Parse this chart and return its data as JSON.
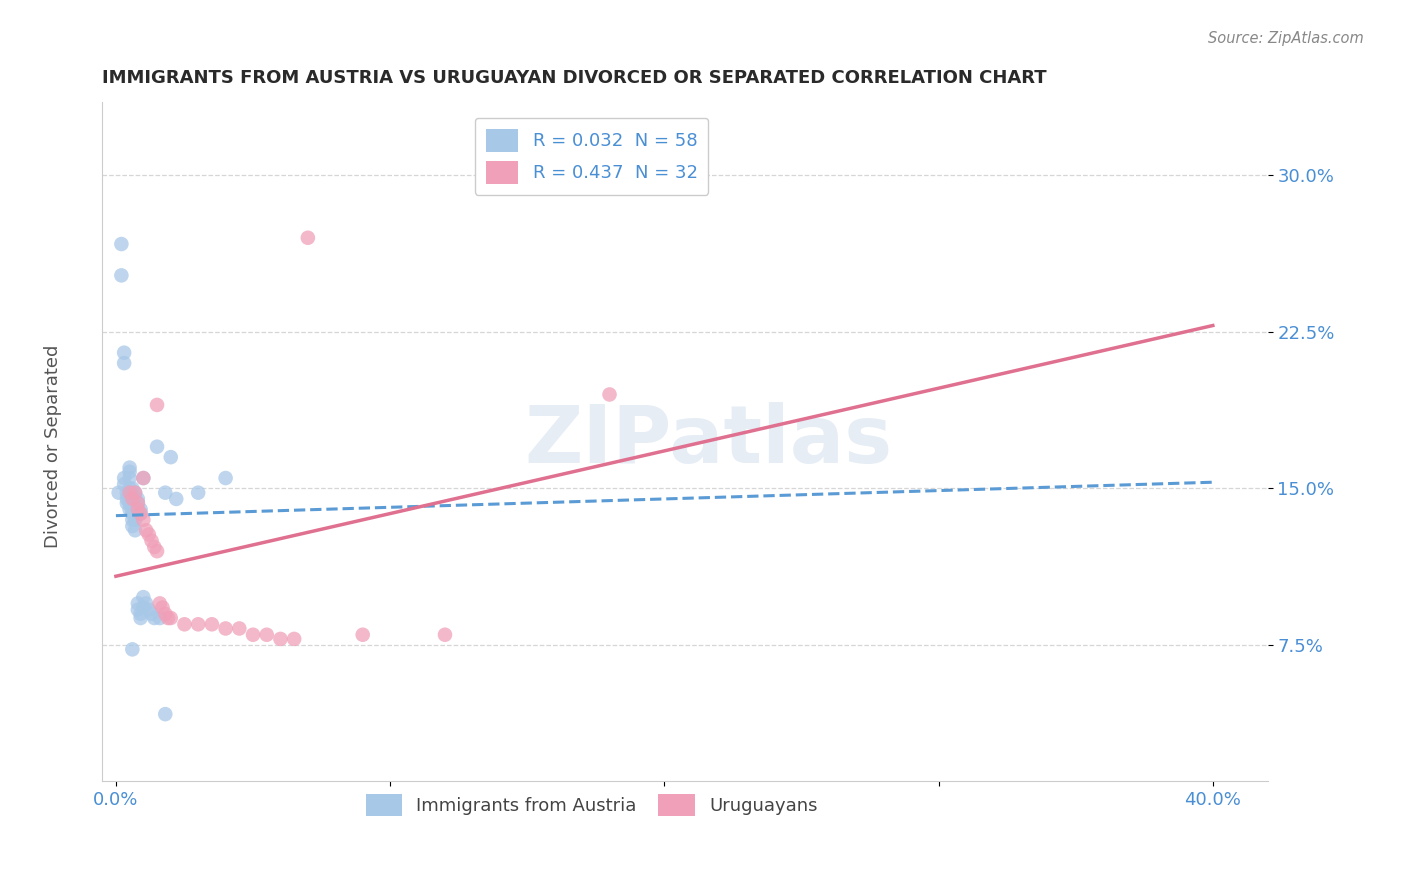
{
  "title": "IMMIGRANTS FROM AUSTRIA VS URUGUAYAN DIVORCED OR SEPARATED CORRELATION CHART",
  "source": "Source: ZipAtlas.com",
  "ylabel": "Divorced or Separated",
  "ytick_labels": [
    "7.5%",
    "15.0%",
    "22.5%",
    "30.0%"
  ],
  "ytick_values": [
    0.075,
    0.15,
    0.225,
    0.3
  ],
  "xtick_values": [
    0.0,
    0.1,
    0.2,
    0.3,
    0.4
  ],
  "xlim": [
    -0.005,
    0.42
  ],
  "ylim": [
    0.01,
    0.335
  ],
  "legend_entries": [
    {
      "label": "R = 0.032  N = 58",
      "color": "#a8c8e8"
    },
    {
      "label": "R = 0.437  N = 32",
      "color": "#f0a0b8"
    }
  ],
  "legend_labels_bottom": [
    "Immigrants from Austria",
    "Uruguayans"
  ],
  "watermark": "ZIPatlas",
  "austria_color": "#a8c8e8",
  "uruguay_color": "#f0a0b8",
  "austria_scatter": [
    [
      0.001,
      0.148
    ],
    [
      0.002,
      0.252
    ],
    [
      0.002,
      0.267
    ],
    [
      0.003,
      0.215
    ],
    [
      0.003,
      0.21
    ],
    [
      0.003,
      0.155
    ],
    [
      0.003,
      0.152
    ],
    [
      0.004,
      0.148
    ],
    [
      0.004,
      0.145
    ],
    [
      0.004,
      0.143
    ],
    [
      0.005,
      0.16
    ],
    [
      0.005,
      0.158
    ],
    [
      0.005,
      0.155
    ],
    [
      0.005,
      0.15
    ],
    [
      0.005,
      0.148
    ],
    [
      0.005,
      0.145
    ],
    [
      0.005,
      0.143
    ],
    [
      0.005,
      0.14
    ],
    [
      0.006,
      0.15
    ],
    [
      0.006,
      0.148
    ],
    [
      0.006,
      0.143
    ],
    [
      0.006,
      0.14
    ],
    [
      0.006,
      0.138
    ],
    [
      0.006,
      0.135
    ],
    [
      0.006,
      0.132
    ],
    [
      0.007,
      0.148
    ],
    [
      0.007,
      0.145
    ],
    [
      0.007,
      0.142
    ],
    [
      0.007,
      0.14
    ],
    [
      0.007,
      0.138
    ],
    [
      0.007,
      0.135
    ],
    [
      0.007,
      0.13
    ],
    [
      0.008,
      0.145
    ],
    [
      0.008,
      0.143
    ],
    [
      0.008,
      0.14
    ],
    [
      0.008,
      0.138
    ],
    [
      0.008,
      0.095
    ],
    [
      0.008,
      0.092
    ],
    [
      0.009,
      0.14
    ],
    [
      0.009,
      0.138
    ],
    [
      0.009,
      0.09
    ],
    [
      0.009,
      0.088
    ],
    [
      0.01,
      0.155
    ],
    [
      0.01,
      0.098
    ],
    [
      0.01,
      0.093
    ],
    [
      0.011,
      0.095
    ],
    [
      0.012,
      0.092
    ],
    [
      0.013,
      0.09
    ],
    [
      0.014,
      0.088
    ],
    [
      0.015,
      0.17
    ],
    [
      0.016,
      0.088
    ],
    [
      0.018,
      0.148
    ],
    [
      0.02,
      0.165
    ],
    [
      0.022,
      0.145
    ],
    [
      0.03,
      0.148
    ],
    [
      0.04,
      0.155
    ],
    [
      0.018,
      0.042
    ],
    [
      0.006,
      0.073
    ]
  ],
  "uruguay_scatter": [
    [
      0.005,
      0.148
    ],
    [
      0.006,
      0.145
    ],
    [
      0.007,
      0.148
    ],
    [
      0.008,
      0.143
    ],
    [
      0.008,
      0.14
    ],
    [
      0.009,
      0.138
    ],
    [
      0.01,
      0.155
    ],
    [
      0.01,
      0.135
    ],
    [
      0.011,
      0.13
    ],
    [
      0.012,
      0.128
    ],
    [
      0.013,
      0.125
    ],
    [
      0.014,
      0.122
    ],
    [
      0.015,
      0.12
    ],
    [
      0.015,
      0.19
    ],
    [
      0.016,
      0.095
    ],
    [
      0.017,
      0.093
    ],
    [
      0.018,
      0.09
    ],
    [
      0.019,
      0.088
    ],
    [
      0.02,
      0.088
    ],
    [
      0.025,
      0.085
    ],
    [
      0.03,
      0.085
    ],
    [
      0.035,
      0.085
    ],
    [
      0.04,
      0.083
    ],
    [
      0.045,
      0.083
    ],
    [
      0.05,
      0.08
    ],
    [
      0.055,
      0.08
    ],
    [
      0.06,
      0.078
    ],
    [
      0.065,
      0.078
    ],
    [
      0.07,
      0.27
    ],
    [
      0.18,
      0.195
    ],
    [
      0.09,
      0.08
    ],
    [
      0.12,
      0.08
    ]
  ],
  "austria_trend_x": [
    0.0,
    0.4
  ],
  "austria_trend_y": [
    0.137,
    0.153
  ],
  "uruguay_trend_x": [
    0.0,
    0.4
  ],
  "uruguay_trend_y": [
    0.108,
    0.228
  ],
  "background_color": "#ffffff",
  "grid_color": "#cccccc",
  "title_color": "#2a2a2a",
  "tick_label_color": "#4a8fd4",
  "axis_spine_color": "#cccccc"
}
